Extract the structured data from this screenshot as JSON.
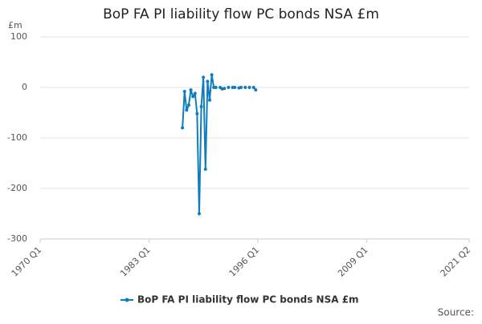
{
  "chart_data": {
    "type": "line",
    "title": "BoP FA PI liability flow PC bonds NSA £m",
    "y_unit": "£m",
    "source": "Source:",
    "x": [
      "1987 Q1",
      "1987 Q2",
      "1987 Q3",
      "1987 Q4",
      "1988 Q1",
      "1988 Q2",
      "1988 Q3",
      "1988 Q4",
      "1989 Q1",
      "1989 Q2",
      "1989 Q3",
      "1989 Q4",
      "1990 Q1",
      "1990 Q2",
      "1990 Q3",
      "1990 Q4",
      "1991 Q1",
      "1991 Q2",
      "1991 Q3",
      "1991 Q4",
      "1992 Q1",
      "1992 Q2",
      "1992 Q3",
      "1992 Q4",
      "1993 Q1",
      "1993 Q2",
      "1993 Q3",
      "1993 Q4",
      "1994 Q1",
      "1994 Q2",
      "1994 Q3",
      "1994 Q4",
      "1995 Q1",
      "1995 Q2",
      "1995 Q3",
      "1995 Q4"
    ],
    "series": [
      {
        "name": "BoP FA PI liability flow PC bonds NSA £m",
        "color": "#0e7dbd",
        "values": [
          -80,
          -8,
          -45,
          -35,
          -5,
          -18,
          -12,
          -52,
          -250,
          -38,
          20,
          -162,
          12,
          -25,
          25,
          0,
          0,
          null,
          0,
          -3,
          -2,
          null,
          0,
          null,
          0,
          0,
          null,
          -1,
          0,
          null,
          0,
          null,
          0,
          null,
          0,
          -5
        ]
      }
    ],
    "xlim": [
      "1970 Q1",
      "2021 Q2"
    ],
    "xticks": [
      "1970 Q1",
      "1983 Q1",
      "1996 Q1",
      "2009 Q1",
      "2021 Q2"
    ],
    "ylim": [
      -300,
      100
    ],
    "yticks": [
      -300,
      -200,
      -100,
      0,
      100
    ],
    "grid": true,
    "legend": "bottom"
  }
}
